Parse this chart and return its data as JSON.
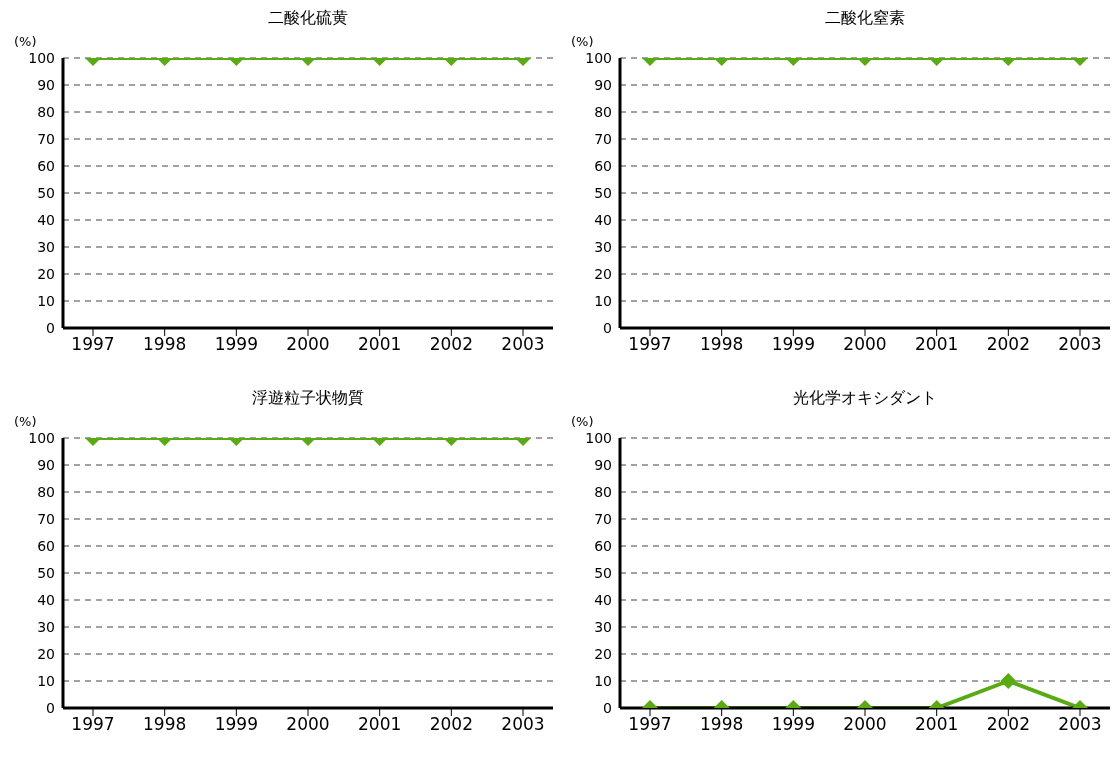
{
  "chart_data": [
    {
      "type": "line",
      "title": "二酸化硫黄",
      "ylabel": "(%)",
      "categories": [
        "1997",
        "1998",
        "1999",
        "2000",
        "2001",
        "2002",
        "2003"
      ],
      "series": [
        {
          "color": "#5aaa14",
          "values": [
            100,
            100,
            100,
            100,
            100,
            100,
            100
          ]
        }
      ],
      "ylim": [
        0,
        100
      ],
      "yticks": [
        0,
        10,
        20,
        30,
        40,
        50,
        60,
        70,
        80,
        90,
        100
      ],
      "grid": "y",
      "marker": "diamond",
      "legend": false
    },
    {
      "type": "line",
      "title": "二酸化窒素",
      "ylabel": "(%)",
      "categories": [
        "1997",
        "1998",
        "1999",
        "2000",
        "2001",
        "2002",
        "2003"
      ],
      "series": [
        {
          "color": "#5aaa14",
          "values": [
            100,
            100,
            100,
            100,
            100,
            100,
            100
          ]
        }
      ],
      "ylim": [
        0,
        100
      ],
      "yticks": [
        0,
        10,
        20,
        30,
        40,
        50,
        60,
        70,
        80,
        90,
        100
      ],
      "grid": "y",
      "marker": "diamond",
      "legend": false
    },
    {
      "type": "line",
      "title": "浮遊粒子状物質",
      "ylabel": "(%)",
      "categories": [
        "1997",
        "1998",
        "1999",
        "2000",
        "2001",
        "2002",
        "2003"
      ],
      "series": [
        {
          "color": "#5aaa14",
          "values": [
            100,
            100,
            100,
            100,
            100,
            100,
            100
          ]
        }
      ],
      "ylim": [
        0,
        100
      ],
      "yticks": [
        0,
        10,
        20,
        30,
        40,
        50,
        60,
        70,
        80,
        90,
        100
      ],
      "grid": "y",
      "marker": "diamond",
      "legend": false
    },
    {
      "type": "line",
      "title": "光化学オキシダント",
      "ylabel": "(%)",
      "categories": [
        "1997",
        "1998",
        "1999",
        "2000",
        "2001",
        "2002",
        "2003"
      ],
      "series": [
        {
          "color": "#5aaa14",
          "values": [
            0,
            0,
            0,
            0,
            0,
            10,
            0
          ]
        }
      ],
      "ylim": [
        0,
        100
      ],
      "yticks": [
        0,
        10,
        20,
        30,
        40,
        50,
        60,
        70,
        80,
        90,
        100
      ],
      "grid": "y",
      "marker": "diamond",
      "legend": false
    }
  ]
}
